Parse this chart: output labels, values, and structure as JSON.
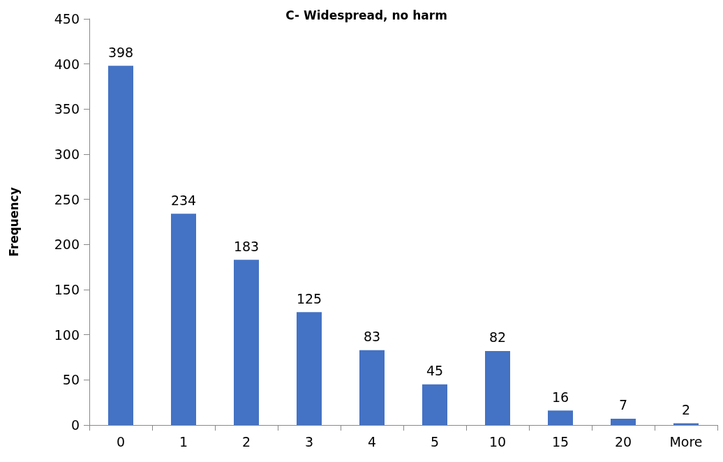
{
  "chart_data": {
    "type": "bar",
    "title": "C- Widespread, no harm",
    "ylabel": "Frequency",
    "categories": [
      "0",
      "1",
      "2",
      "3",
      "4",
      "5",
      "10",
      "15",
      "20",
      "More"
    ],
    "values": [
      398,
      234,
      183,
      125,
      83,
      45,
      82,
      16,
      7,
      2
    ],
    "color": "#4472c4",
    "ylim": [
      0,
      450
    ],
    "yticks": [
      0,
      50,
      100,
      150,
      200,
      250,
      300,
      350,
      400,
      450
    ],
    "grid": false,
    "data_labels": true
  }
}
